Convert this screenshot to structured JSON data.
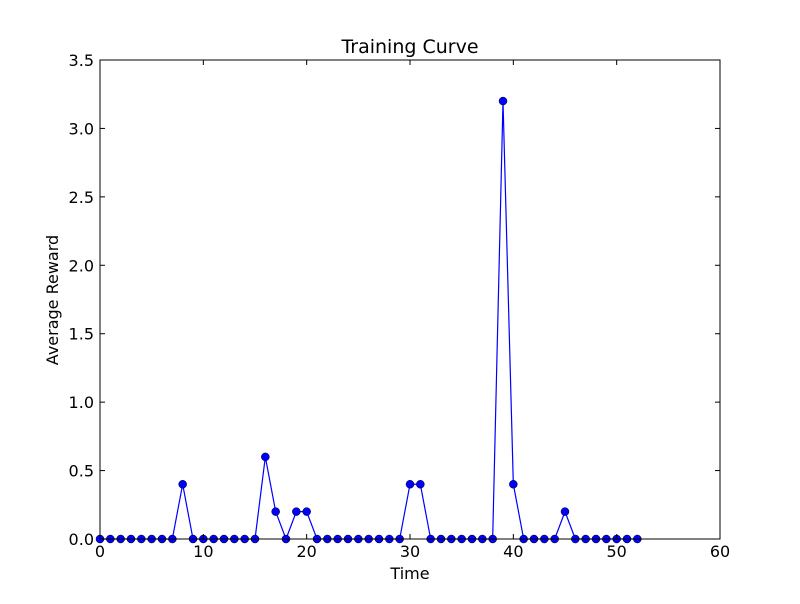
{
  "chart_data": {
    "type": "line",
    "title": "Training Curve",
    "xlabel": "Time",
    "ylabel": "Average Reward",
    "xlim": [
      0,
      60
    ],
    "ylim": [
      0,
      3.5
    ],
    "xticks": [
      0,
      10,
      20,
      30,
      40,
      50,
      60
    ],
    "xtick_labels": [
      "0",
      "10",
      "20",
      "30",
      "40",
      "50",
      "60"
    ],
    "yticks": [
      0,
      0.5,
      1.0,
      1.5,
      2.0,
      2.5,
      3.0,
      3.5
    ],
    "ytick_labels": [
      "0.0",
      "0.5",
      "1.0",
      "1.5",
      "2.0",
      "2.5",
      "3.0",
      "3.5"
    ],
    "grid": false,
    "legend": "none",
    "series": [
      {
        "color": "#0000ff",
        "marker": "circle",
        "x": [
          0,
          1,
          2,
          3,
          4,
          5,
          6,
          7,
          8,
          9,
          10,
          11,
          12,
          13,
          14,
          15,
          16,
          17,
          18,
          19,
          20,
          21,
          22,
          23,
          24,
          25,
          26,
          27,
          28,
          29,
          30,
          31,
          32,
          33,
          34,
          35,
          36,
          37,
          38,
          39,
          40,
          41,
          42,
          43,
          44,
          45,
          46,
          47,
          48,
          49,
          50,
          51,
          52
        ],
        "values": [
          0,
          0,
          0,
          0,
          0,
          0,
          0,
          0,
          0.4,
          0,
          0,
          0,
          0,
          0,
          0,
          0,
          0.6,
          0.2,
          0,
          0.2,
          0.2,
          0,
          0,
          0,
          0,
          0,
          0,
          0,
          0,
          0,
          0.4,
          0.4,
          0,
          0,
          0,
          0,
          0,
          0,
          0,
          3.2,
          0.4,
          0,
          0,
          0,
          0,
          0.2,
          0,
          0,
          0,
          0,
          0,
          0,
          0
        ]
      }
    ]
  }
}
